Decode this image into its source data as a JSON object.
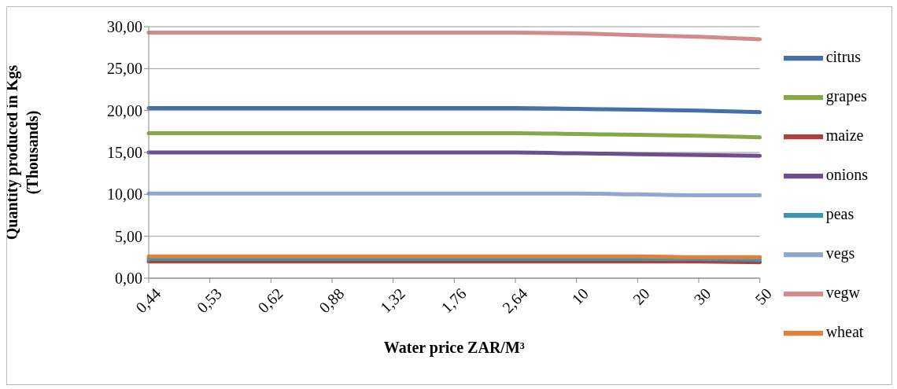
{
  "chart_data": {
    "type": "line",
    "xlabel": "Water price ZAR/M³",
    "ylabel": "Quantity produced in Kgs\n(Thousands)",
    "categories": [
      "0,44",
      "0,53",
      "0,62",
      "0,88",
      "1,32",
      "1,76",
      "2,64",
      "10",
      "20",
      "30",
      "50"
    ],
    "series": [
      {
        "name": "citrus",
        "color": "#4570a8",
        "values": [
          20.3,
          20.3,
          20.3,
          20.3,
          20.3,
          20.3,
          20.3,
          20.2,
          20.1,
          20.0,
          19.8
        ]
      },
      {
        "name": "maize",
        "color": "#b0403d",
        "values": [
          2.0,
          2.0,
          2.0,
          2.0,
          2.0,
          2.0,
          2.0,
          2.0,
          2.0,
          2.0,
          1.9
        ]
      },
      {
        "name": "grapes",
        "color": "#86a845",
        "values": [
          17.3,
          17.3,
          17.3,
          17.3,
          17.3,
          17.3,
          17.3,
          17.2,
          17.1,
          17.0,
          16.8
        ]
      },
      {
        "name": "onions",
        "color": "#6e4f8e",
        "values": [
          15.0,
          15.0,
          15.0,
          15.0,
          15.0,
          15.0,
          15.0,
          14.9,
          14.8,
          14.7,
          14.6
        ]
      },
      {
        "name": "peas",
        "color": "#3b97b0",
        "values": [
          2.3,
          2.3,
          2.3,
          2.3,
          2.3,
          2.3,
          2.3,
          2.3,
          2.3,
          2.3,
          2.2
        ]
      },
      {
        "name": "wheat",
        "color": "#e0823a",
        "values": [
          2.6,
          2.6,
          2.6,
          2.6,
          2.6,
          2.6,
          2.6,
          2.6,
          2.6,
          2.5,
          2.5
        ]
      },
      {
        "name": "vegs",
        "color": "#8ea8d2",
        "values": [
          10.1,
          10.1,
          10.1,
          10.1,
          10.1,
          10.1,
          10.1,
          10.1,
          10.0,
          9.9,
          9.9
        ]
      },
      {
        "name": "vegw",
        "color": "#d48a8a",
        "values": [
          29.3,
          29.3,
          29.3,
          29.3,
          29.3,
          29.3,
          29.3,
          29.2,
          29.0,
          28.8,
          28.5
        ]
      }
    ],
    "ylim": [
      0,
      30
    ],
    "yticks": [
      {
        "value": 0,
        "label": "0,00"
      },
      {
        "value": 5,
        "label": "5,00"
      },
      {
        "value": 10,
        "label": "10,00"
      },
      {
        "value": 15,
        "label": "15,00"
      },
      {
        "value": 20,
        "label": "20,00"
      },
      {
        "value": 25,
        "label": "25,00"
      },
      {
        "value": 30,
        "label": "30,00"
      }
    ],
    "grid": "y",
    "legend": "right",
    "marker": "none",
    "line_style": "solid"
  }
}
